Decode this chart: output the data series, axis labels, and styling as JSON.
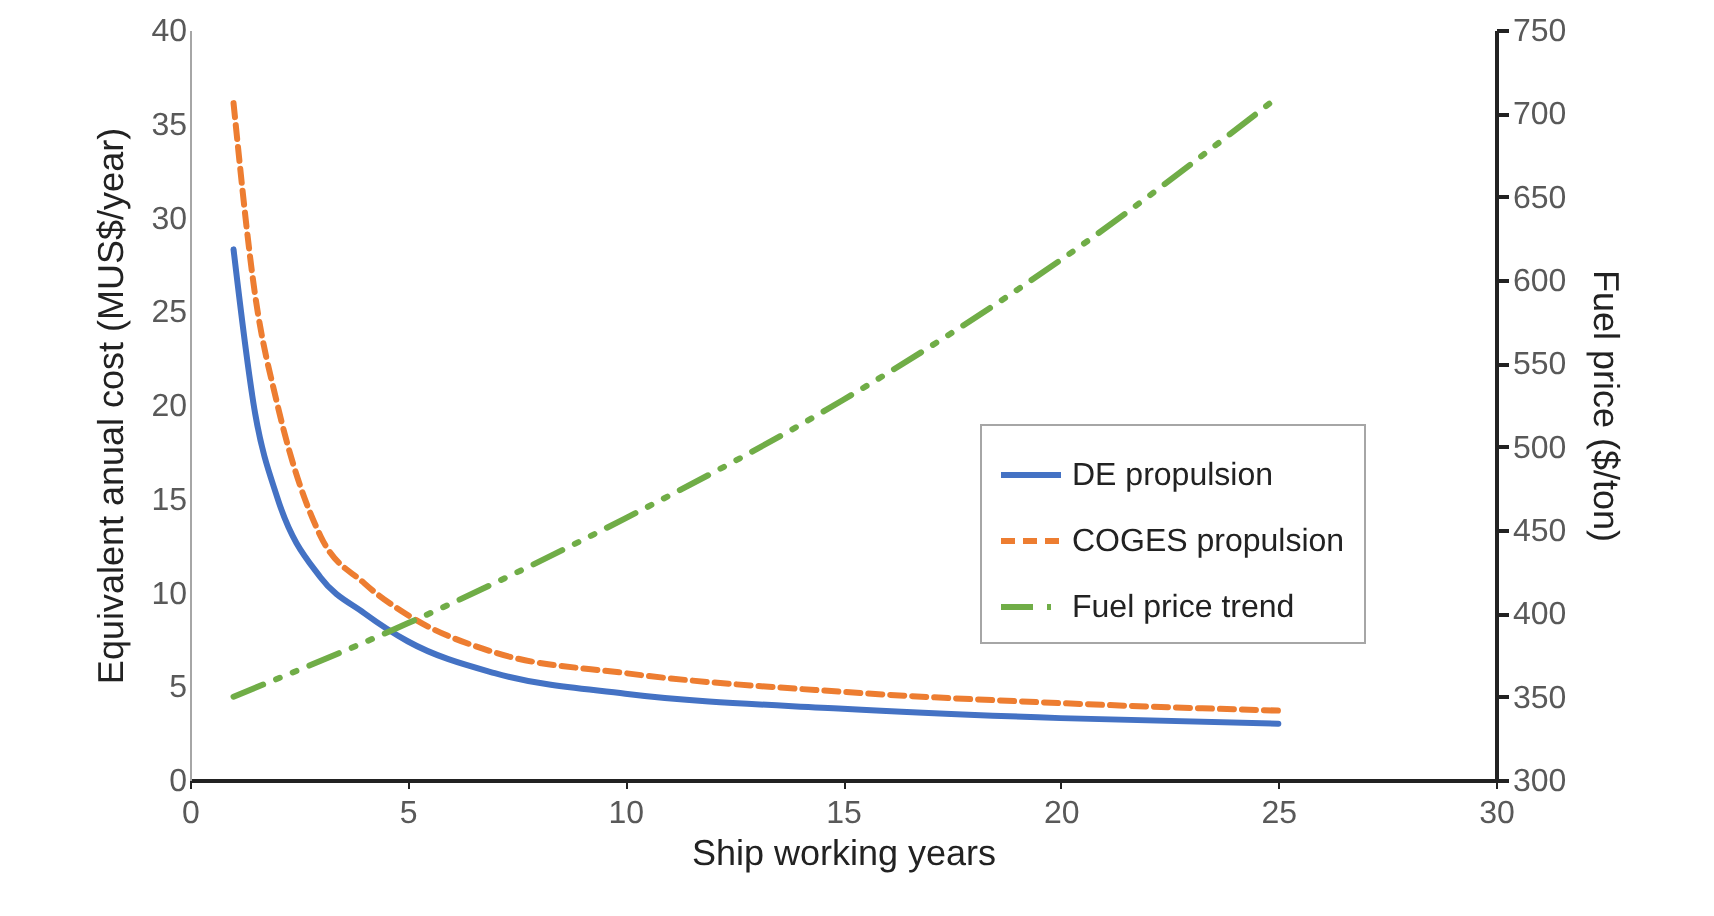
{
  "chart_data": {
    "type": "line",
    "xlabel": "Ship working years",
    "ylabel": "Equivalent anual cost (MUS$/year)",
    "y2label": "Fuel price ($/ton)",
    "xlim": [
      0,
      30
    ],
    "xticks": [
      0,
      5,
      10,
      15,
      20,
      25,
      30
    ],
    "ylim": [
      0,
      40
    ],
    "yticks": [
      0,
      5,
      10,
      15,
      20,
      25,
      30,
      35,
      40
    ],
    "y2lim": [
      300,
      750
    ],
    "y2ticks": [
      300,
      350,
      400,
      450,
      500,
      550,
      600,
      650,
      700,
      750
    ],
    "grid": false,
    "legend": "right",
    "marker": "none",
    "series": [
      {
        "name": "DE propulsion",
        "color": "#4472c4",
        "line_style": "solid",
        "x": [
          1,
          1.5,
          2,
          3,
          4,
          5,
          7,
          10,
          15,
          20,
          25
        ],
        "values": [
          28.3,
          19.5,
          15.1,
          10.8,
          8.9,
          7.4,
          5.7,
          4.6,
          3.8,
          3.3,
          3.0
        ]
      },
      {
        "name": "COGES propulsion",
        "color": "#ed7d31",
        "line_style": "dashed",
        "x": [
          1,
          1.5,
          2,
          3,
          4,
          5,
          7,
          10,
          15,
          20,
          25
        ],
        "values": [
          36.1,
          25.8,
          20.1,
          13.0,
          10.5,
          8.8,
          6.8,
          5.7,
          4.7,
          4.1,
          3.7
        ]
      },
      {
        "name": "Fuel price trend",
        "color": "#70ad47",
        "line_style": "dashdot",
        "axis": "y2",
        "x": [
          1,
          5,
          10,
          15,
          20,
          25
        ],
        "values": [
          350,
          394,
          457,
          528,
          612,
          710
        ]
      }
    ]
  }
}
